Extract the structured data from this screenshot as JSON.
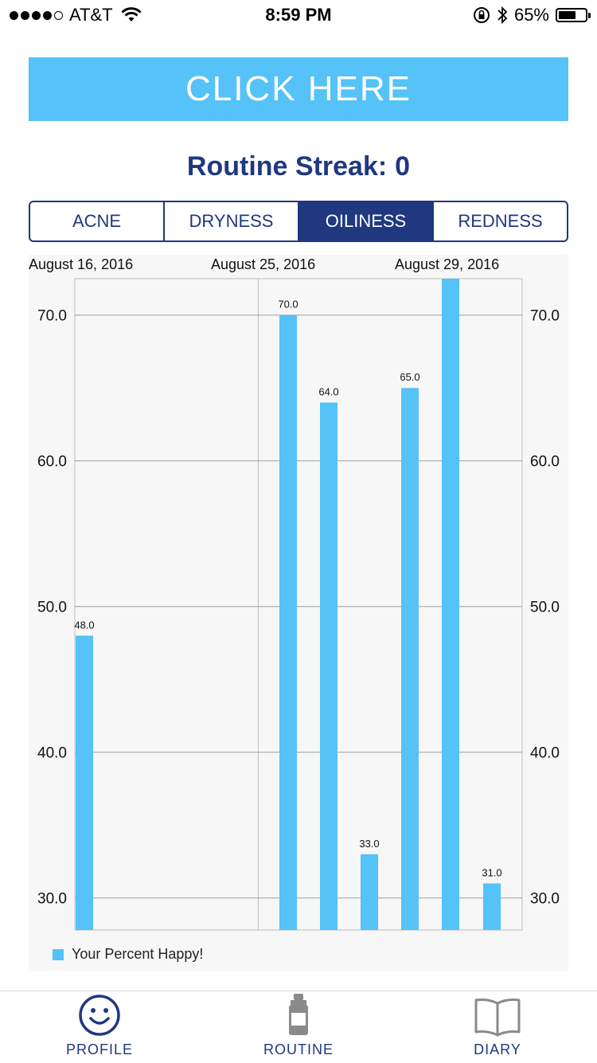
{
  "status_bar": {
    "carrier": "AT&T",
    "time": "8:59 PM",
    "battery_percent": "65%",
    "battery_level": 0.65,
    "signal_bars": 4,
    "signal_max": 5
  },
  "banner": {
    "label": "CLICK HERE"
  },
  "streak": {
    "label": "Routine Streak:",
    "value": "0"
  },
  "segments": [
    {
      "label": "ACNE",
      "active": false
    },
    {
      "label": "DRYNESS",
      "active": false
    },
    {
      "label": "OILINESS",
      "active": true
    },
    {
      "label": "REDNESS",
      "active": false
    }
  ],
  "chart_data": {
    "type": "bar",
    "top_date_labels": [
      "August 16, 2016",
      "August 25, 2016",
      "August 29, 2016"
    ],
    "y_ticks": [
      30.0,
      40.0,
      50.0,
      60.0,
      70.0
    ],
    "ylim": [
      27.8,
      72.5
    ],
    "bars": [
      {
        "value": 48.0,
        "label": "48.0"
      },
      {
        "value": 70.0,
        "label": "70.0"
      },
      {
        "value": 64.0,
        "label": "64.0"
      },
      {
        "value": 33.0,
        "label": "33.0"
      },
      {
        "value": 65.0,
        "label": "65.0"
      },
      {
        "value": 72.5,
        "label": ""
      },
      {
        "value": 31.0,
        "label": "31.0"
      }
    ],
    "series": [
      {
        "name": "Your Percent Happy!"
      }
    ],
    "bar_color": "#55c2f8",
    "grid": true,
    "legend_position": "bottom-left"
  },
  "tabbar": [
    {
      "label": "PROFILE",
      "icon": "smiley-icon"
    },
    {
      "label": "ROUTINE",
      "icon": "bottle-icon"
    },
    {
      "label": "DIARY",
      "icon": "book-icon"
    }
  ],
  "colors": {
    "accent": "#55c2f8",
    "navy": "#1f3880"
  }
}
